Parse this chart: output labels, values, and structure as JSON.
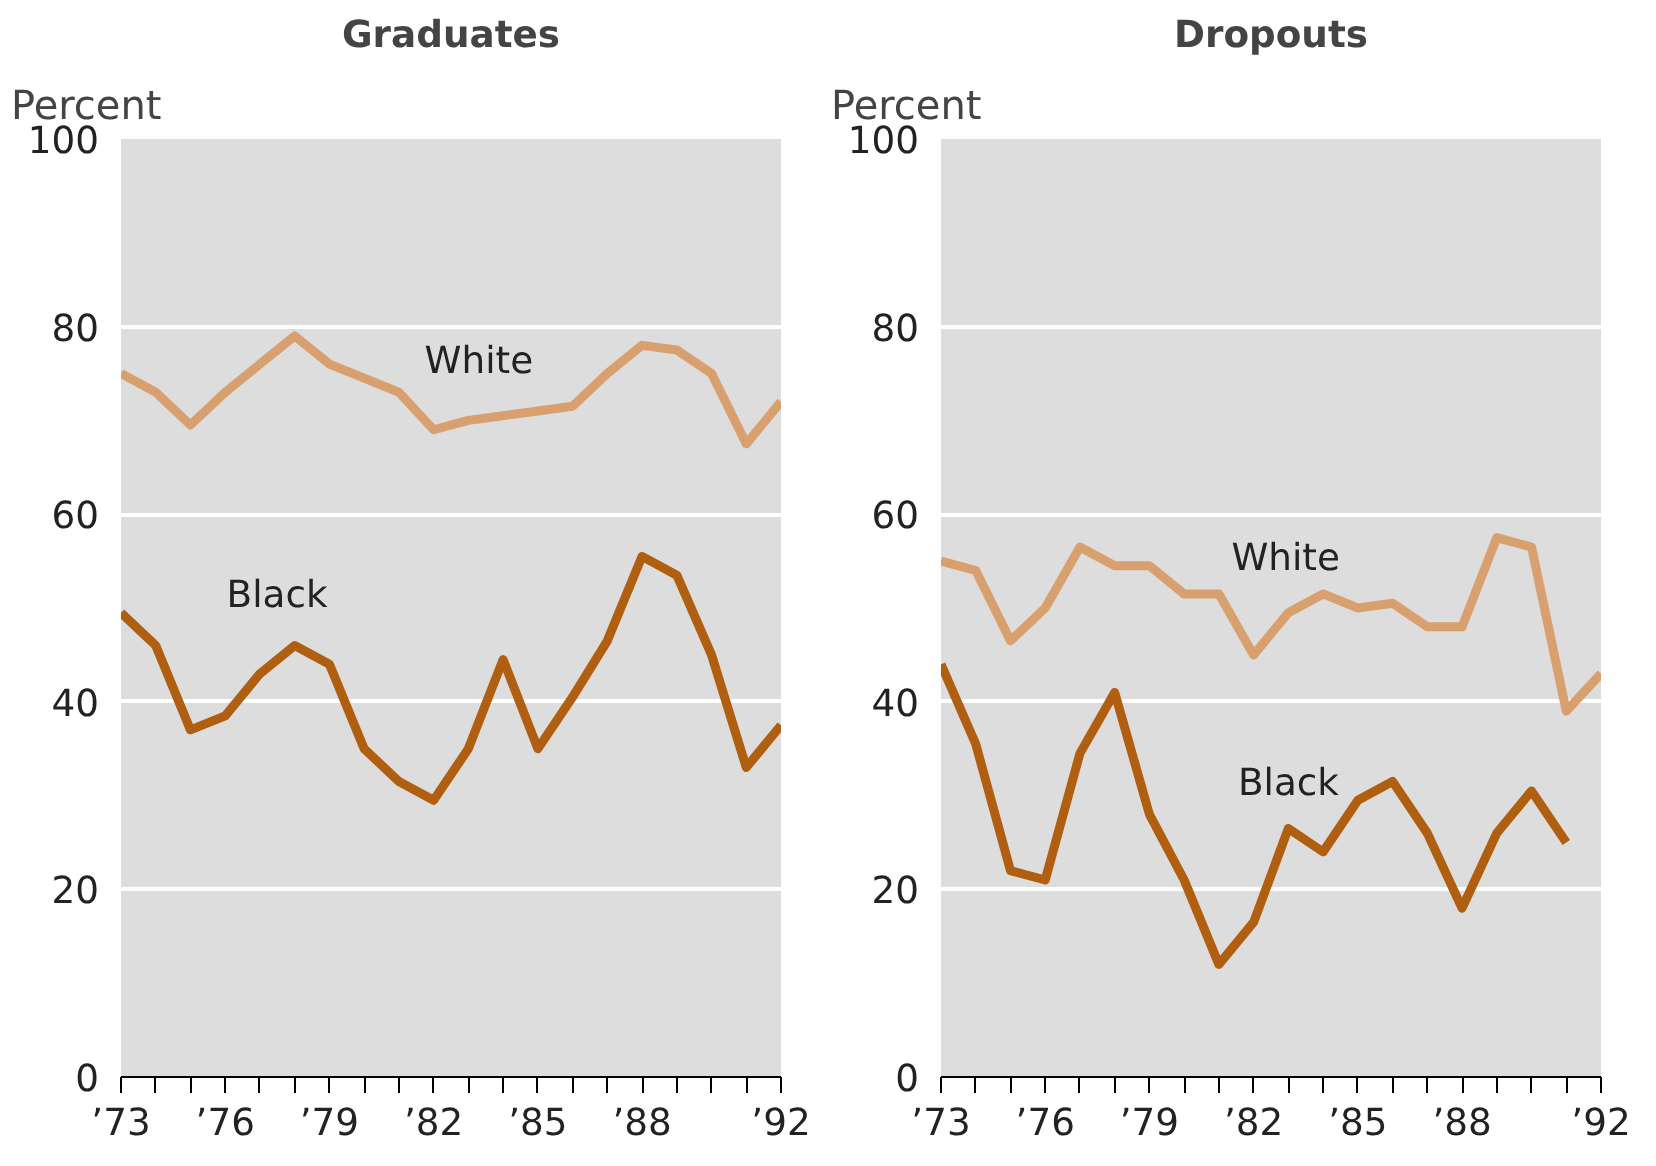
{
  "chart_data": [
    {
      "type": "line",
      "title": "Graduates",
      "ylabel": "Percent",
      "x": [
        1973,
        1974,
        1975,
        1976,
        1977,
        1978,
        1979,
        1980,
        1981,
        1982,
        1983,
        1984,
        1985,
        1986,
        1987,
        1988,
        1989,
        1990,
        1991,
        1992
      ],
      "series": [
        {
          "name": "White",
          "color": "#d9a06f",
          "values": [
            75,
            73,
            69.5,
            73,
            76,
            79,
            76,
            74.5,
            73,
            69,
            70,
            70.5,
            71,
            71.5,
            75,
            78,
            77.5,
            75,
            67.5,
            72
          ]
        },
        {
          "name": "Black",
          "color": "#b05e10",
          "values": [
            49.5,
            46,
            37,
            38.5,
            43,
            46,
            44,
            35,
            31.5,
            29.5,
            35,
            44.5,
            35,
            40.5,
            46.5,
            55.5,
            53.5,
            45,
            33,
            37.5
          ]
        }
      ],
      "xlim": [
        1973,
        1992
      ],
      "xticks": [
        {
          "value": 1973,
          "label": "’73"
        },
        {
          "value": 1974,
          "label": null
        },
        {
          "value": 1975,
          "label": null
        },
        {
          "value": 1976,
          "label": "’76"
        },
        {
          "value": 1977,
          "label": null
        },
        {
          "value": 1978,
          "label": null
        },
        {
          "value": 1979,
          "label": "’79"
        },
        {
          "value": 1980,
          "label": null
        },
        {
          "value": 1981,
          "label": null
        },
        {
          "value": 1982,
          "label": "’82"
        },
        {
          "value": 1983,
          "label": null
        },
        {
          "value": 1984,
          "label": null
        },
        {
          "value": 1985,
          "label": "’85"
        },
        {
          "value": 1986,
          "label": null
        },
        {
          "value": 1987,
          "label": null
        },
        {
          "value": 1988,
          "label": "’88"
        },
        {
          "value": 1989,
          "label": null
        },
        {
          "value": 1990,
          "label": null
        },
        {
          "value": 1991,
          "label": null
        },
        {
          "value": 1992,
          "label": "’92"
        }
      ],
      "ylim": [
        0,
        100
      ],
      "yticks": [
        0,
        20,
        40,
        60,
        80,
        100
      ],
      "grid": "y",
      "marker": "none",
      "line_style": "solid"
    },
    {
      "type": "line",
      "title": "Dropouts",
      "ylabel": "Percent",
      "x": [
        1973,
        1974,
        1975,
        1976,
        1977,
        1978,
        1979,
        1980,
        1981,
        1982,
        1983,
        1984,
        1985,
        1986,
        1987,
        1988,
        1989,
        1990,
        1991,
        1992
      ],
      "series": [
        {
          "name": "White",
          "color": "#d9a06f",
          "values": [
            55,
            54,
            46.5,
            50,
            56.5,
            54.5,
            54.5,
            51.5,
            51.5,
            45,
            49.5,
            51.5,
            50,
            50.5,
            48,
            48,
            57.5,
            56.5,
            39,
            43
          ]
        },
        {
          "name": "Black",
          "color": "#b05e10",
          "values": [
            44,
            35.5,
            22,
            21,
            34.5,
            41,
            28,
            21,
            12,
            16.5,
            26.5,
            24,
            29.5,
            31.5,
            26,
            18,
            26,
            30.5,
            25,
            null
          ]
        }
      ],
      "xlim": [
        1973,
        1992
      ],
      "xticks": [
        {
          "value": 1973,
          "label": "’73"
        },
        {
          "value": 1974,
          "label": null
        },
        {
          "value": 1975,
          "label": null
        },
        {
          "value": 1976,
          "label": "’76"
        },
        {
          "value": 1977,
          "label": null
        },
        {
          "value": 1978,
          "label": null
        },
        {
          "value": 1979,
          "label": "’79"
        },
        {
          "value": 1980,
          "label": null
        },
        {
          "value": 1981,
          "label": null
        },
        {
          "value": 1982,
          "label": "’82"
        },
        {
          "value": 1983,
          "label": null
        },
        {
          "value": 1984,
          "label": null
        },
        {
          "value": 1985,
          "label": "’85"
        },
        {
          "value": 1986,
          "label": null
        },
        {
          "value": 1987,
          "label": null
        },
        {
          "value": 1988,
          "label": "’88"
        },
        {
          "value": 1989,
          "label": null
        },
        {
          "value": 1990,
          "label": null
        },
        {
          "value": 1991,
          "label": null
        },
        {
          "value": 1992,
          "label": "’92"
        }
      ],
      "ylim": [
        0,
        100
      ],
      "yticks": [
        0,
        20,
        40,
        60,
        80,
        100
      ],
      "grid": "y",
      "marker": "none",
      "line_style": "solid"
    }
  ]
}
